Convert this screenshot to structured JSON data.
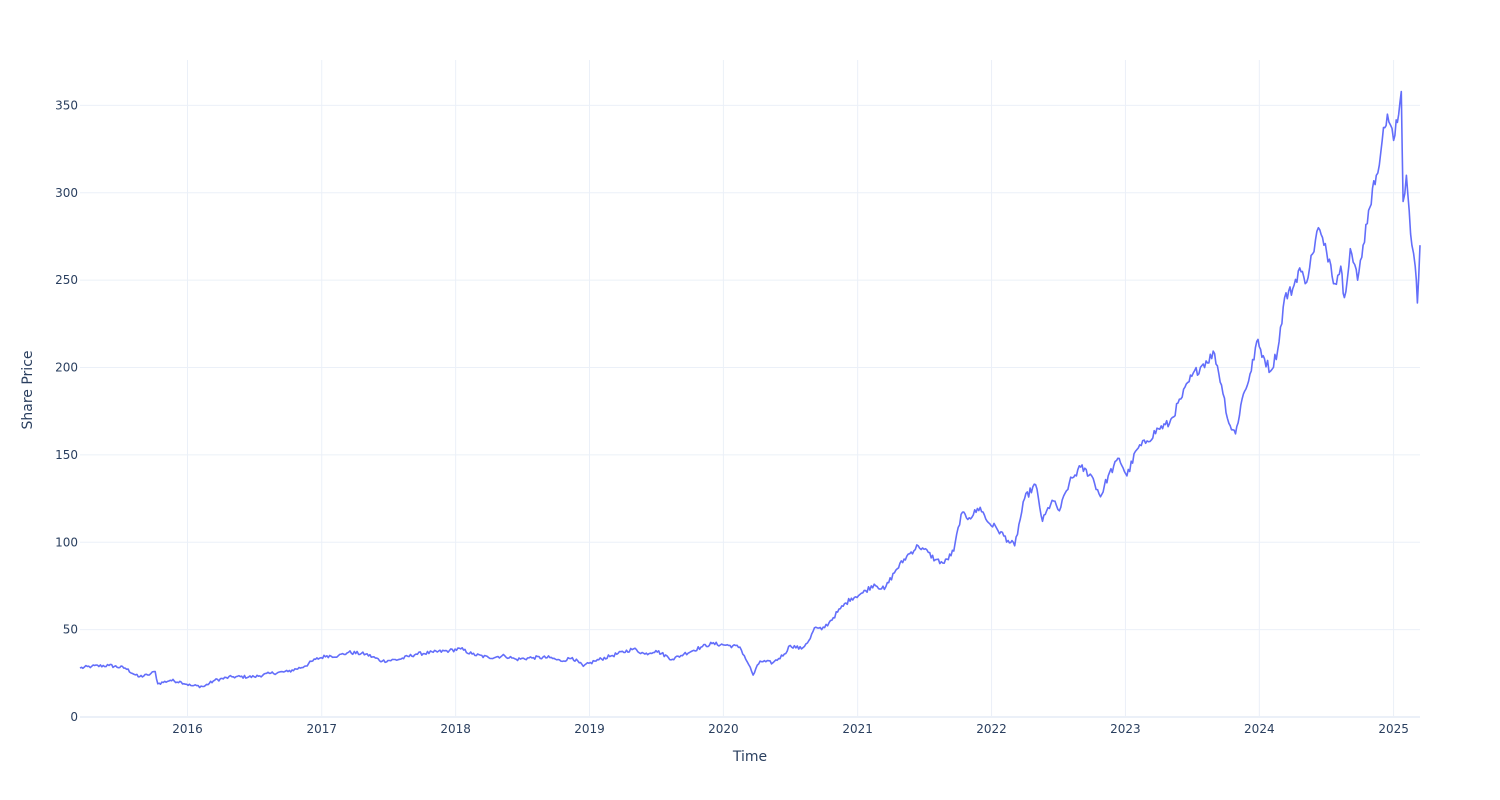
{
  "chart_data": {
    "type": "line",
    "title": "",
    "xlabel": "Time",
    "ylabel": "Share Price",
    "xlim": [
      "2015-03-14",
      "2025-03-14"
    ],
    "ylim": [
      0,
      376
    ],
    "grid": true,
    "legend": "none",
    "colors": {
      "line": "#636efa",
      "grid": "#ebf0f8",
      "zero_line": "#ebf0f8",
      "text": "#2a3f5f"
    },
    "x_ticks": [
      {
        "label": "2016",
        "date": "2016-01-01"
      },
      {
        "label": "2017",
        "date": "2017-01-01"
      },
      {
        "label": "2018",
        "date": "2018-01-01"
      },
      {
        "label": "2019",
        "date": "2019-01-01"
      },
      {
        "label": "2020",
        "date": "2020-01-01"
      },
      {
        "label": "2021",
        "date": "2021-01-01"
      },
      {
        "label": "2022",
        "date": "2022-01-01"
      },
      {
        "label": "2023",
        "date": "2023-01-01"
      },
      {
        "label": "2024",
        "date": "2024-01-01"
      },
      {
        "label": "2025",
        "date": "2025-01-01"
      }
    ],
    "y_ticks": [
      {
        "label": "0",
        "value": 0
      },
      {
        "label": "50",
        "value": 50
      },
      {
        "label": "100",
        "value": 100
      },
      {
        "label": "150",
        "value": 150
      },
      {
        "label": "200",
        "value": 200
      },
      {
        "label": "250",
        "value": 250
      },
      {
        "label": "300",
        "value": 300
      },
      {
        "label": "350",
        "value": 350
      }
    ],
    "series": [
      {
        "points": [
          [
            "2015-03-14",
            28
          ],
          [
            "2015-04-15",
            29
          ],
          [
            "2015-06-01",
            29.5
          ],
          [
            "2015-07-15",
            28
          ],
          [
            "2015-08-20",
            23
          ],
          [
            "2015-09-15",
            24
          ],
          [
            "2015-10-05",
            26
          ],
          [
            "2015-10-12",
            19
          ],
          [
            "2015-11-15",
            21
          ],
          [
            "2015-12-15",
            20
          ],
          [
            "2016-01-10",
            18
          ],
          [
            "2016-02-15",
            17.5
          ],
          [
            "2016-03-15",
            21
          ],
          [
            "2016-05-01",
            23
          ],
          [
            "2016-07-01",
            23
          ],
          [
            "2016-08-15",
            25
          ],
          [
            "2016-10-01",
            26
          ],
          [
            "2016-11-15",
            29
          ],
          [
            "2016-12-15",
            33
          ],
          [
            "2017-01-15",
            35
          ],
          [
            "2017-02-15",
            35
          ],
          [
            "2017-03-15",
            37
          ],
          [
            "2017-05-01",
            36
          ],
          [
            "2017-06-15",
            32
          ],
          [
            "2017-08-01",
            33
          ],
          [
            "2017-09-15",
            36
          ],
          [
            "2017-11-01",
            37
          ],
          [
            "2017-12-15",
            38
          ],
          [
            "2018-01-15",
            39
          ],
          [
            "2018-02-15",
            36
          ],
          [
            "2018-04-01",
            34
          ],
          [
            "2018-05-15",
            35
          ],
          [
            "2018-06-15",
            33
          ],
          [
            "2018-08-01",
            34
          ],
          [
            "2018-09-15",
            34
          ],
          [
            "2018-10-15",
            32
          ],
          [
            "2018-11-15",
            34
          ],
          [
            "2018-12-15",
            29
          ],
          [
            "2019-01-15",
            32
          ],
          [
            "2019-03-01",
            35
          ],
          [
            "2019-05-01",
            39
          ],
          [
            "2019-06-01",
            36
          ],
          [
            "2019-07-01",
            38
          ],
          [
            "2019-08-15",
            33
          ],
          [
            "2019-09-15",
            36
          ],
          [
            "2019-11-01",
            40
          ],
          [
            "2019-12-01",
            42
          ],
          [
            "2020-01-15",
            41
          ],
          [
            "2020-02-15",
            40
          ],
          [
            "2020-03-10",
            30
          ],
          [
            "2020-03-22",
            24
          ],
          [
            "2020-04-10",
            32
          ],
          [
            "2020-05-15",
            31
          ],
          [
            "2020-06-15",
            36
          ],
          [
            "2020-07-01",
            41
          ],
          [
            "2020-08-01",
            39
          ],
          [
            "2020-08-25",
            45
          ],
          [
            "2020-09-05",
            51
          ],
          [
            "2020-09-25",
            50
          ],
          [
            "2020-10-15",
            54
          ],
          [
            "2020-11-15",
            62
          ],
          [
            "2020-12-15",
            68
          ],
          [
            "2021-01-15",
            71
          ],
          [
            "2021-02-15",
            76
          ],
          [
            "2021-03-15",
            73
          ],
          [
            "2021-04-15",
            84
          ],
          [
            "2021-05-15",
            92
          ],
          [
            "2021-06-15",
            98
          ],
          [
            "2021-07-01",
            96
          ],
          [
            "2021-08-01",
            90
          ],
          [
            "2021-08-25",
            88
          ],
          [
            "2021-09-20",
            95
          ],
          [
            "2021-10-10",
            116
          ],
          [
            "2021-11-01",
            114
          ],
          [
            "2021-12-01",
            120
          ],
          [
            "2021-12-20",
            112
          ],
          [
            "2022-01-15",
            108
          ],
          [
            "2022-02-15",
            101
          ],
          [
            "2022-03-05",
            98
          ],
          [
            "2022-04-01",
            125
          ],
          [
            "2022-05-01",
            133
          ],
          [
            "2022-05-20",
            112
          ],
          [
            "2022-06-15",
            124
          ],
          [
            "2022-07-05",
            118
          ],
          [
            "2022-08-01",
            134
          ],
          [
            "2022-09-01",
            143
          ],
          [
            "2022-10-01",
            138
          ],
          [
            "2022-10-25",
            126
          ],
          [
            "2022-11-15",
            138
          ],
          [
            "2022-12-15",
            148
          ],
          [
            "2023-01-05",
            138
          ],
          [
            "2023-02-01",
            153
          ],
          [
            "2023-03-01",
            158
          ],
          [
            "2023-04-01",
            165
          ],
          [
            "2023-05-01",
            168
          ],
          [
            "2023-06-01",
            182
          ],
          [
            "2023-07-01",
            195
          ],
          [
            "2023-08-01",
            202
          ],
          [
            "2023-09-01",
            208
          ],
          [
            "2023-09-20",
            190
          ],
          [
            "2023-10-10",
            168
          ],
          [
            "2023-10-28",
            162
          ],
          [
            "2023-11-15",
            182
          ],
          [
            "2023-12-10",
            198
          ],
          [
            "2023-12-25",
            215
          ],
          [
            "2024-01-15",
            205
          ],
          [
            "2024-02-01",
            198
          ],
          [
            "2024-02-20",
            210
          ],
          [
            "2024-03-10",
            240
          ],
          [
            "2024-04-01",
            245
          ],
          [
            "2024-04-20",
            257
          ],
          [
            "2024-05-05",
            248
          ],
          [
            "2024-05-25",
            265
          ],
          [
            "2024-06-10",
            280
          ],
          [
            "2024-06-25",
            270
          ],
          [
            "2024-07-10",
            262
          ],
          [
            "2024-07-25",
            248
          ],
          [
            "2024-08-10",
            258
          ],
          [
            "2024-08-20",
            240
          ],
          [
            "2024-09-05",
            268
          ],
          [
            "2024-09-25",
            250
          ],
          [
            "2024-10-10",
            270
          ],
          [
            "2024-10-25",
            290
          ],
          [
            "2024-11-15",
            310
          ],
          [
            "2024-12-01",
            330
          ],
          [
            "2024-12-15",
            345
          ],
          [
            "2025-01-01",
            330
          ],
          [
            "2025-01-15",
            345
          ],
          [
            "2025-01-22",
            358
          ],
          [
            "2025-01-27",
            295
          ],
          [
            "2025-02-05",
            310
          ],
          [
            "2025-02-20",
            270
          ],
          [
            "2025-03-01",
            258
          ],
          [
            "2025-03-07",
            237
          ],
          [
            "2025-03-14",
            270
          ]
        ]
      }
    ]
  }
}
